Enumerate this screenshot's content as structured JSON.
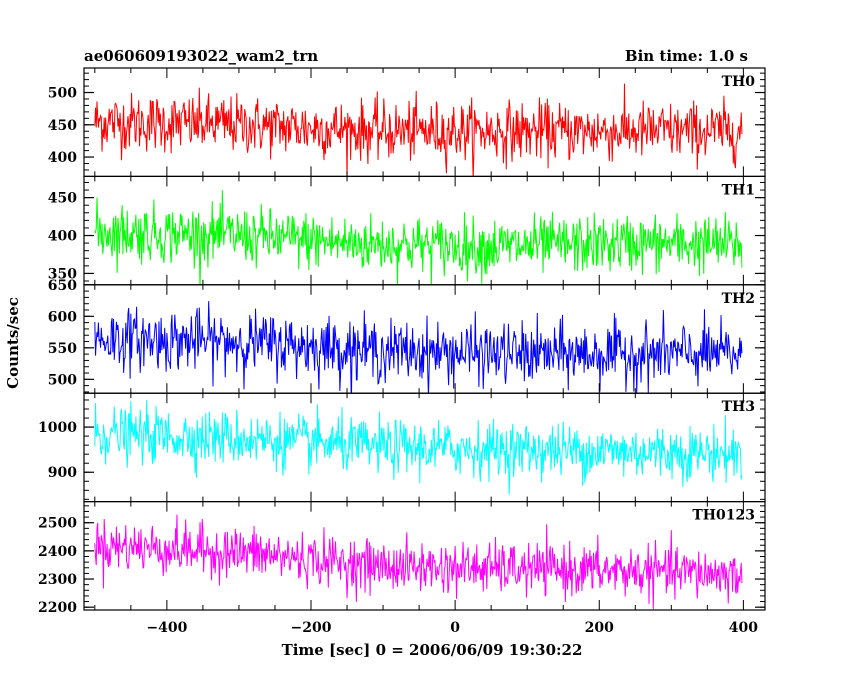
{
  "chart_data": {
    "type": "line",
    "title": "ae060609193022_wam2_trn",
    "subtitle": "Bin time: 1.0 s",
    "xlabel": "Time [sec] 0 = 2006/06/09 19:30:22",
    "ylabel": "Counts/sec",
    "xlim": [
      -515,
      430
    ],
    "x_range": [
      -500,
      398
    ],
    "x_ticks": [
      -400,
      -200,
      0,
      200,
      400
    ],
    "x_tick_labels": [
      "−400",
      "−200",
      "0",
      "200",
      "400"
    ],
    "grid": false,
    "panels": [
      {
        "name": "TH0",
        "color": "#ff0000",
        "ylim": [
          370,
          538
        ],
        "y_ticks": [
          400,
          450,
          500
        ],
        "trend": [
          [
            -500,
            455
          ],
          [
            -300,
            450
          ],
          [
            -100,
            440
          ],
          [
            100,
            440
          ],
          [
            300,
            440
          ],
          [
            398,
            440
          ]
        ],
        "noise": 30
      },
      {
        "name": "TH1",
        "color": "#00ff00",
        "ylim": [
          335,
          478
        ],
        "y_ticks": [
          350,
          400,
          450
        ],
        "trend": [
          [
            -500,
            405
          ],
          [
            -300,
            400
          ],
          [
            -150,
            390
          ],
          [
            50,
            385
          ],
          [
            250,
            390
          ],
          [
            398,
            388
          ]
        ],
        "noise": 25
      },
      {
        "name": "TH2",
        "color": "#0000ff",
        "ylim": [
          478,
          650
        ],
        "y_ticks": [
          500,
          550,
          600,
          650
        ],
        "trend": [
          [
            -500,
            565
          ],
          [
            -300,
            560
          ],
          [
            -100,
            545
          ],
          [
            100,
            540
          ],
          [
            300,
            540
          ],
          [
            398,
            540
          ]
        ],
        "noise": 32
      },
      {
        "name": "TH3",
        "color": "#00ffff",
        "ylim": [
          835,
          1075
        ],
        "y_ticks": [
          900,
          1000
        ],
        "trend": [
          [
            -500,
            985
          ],
          [
            -300,
            975
          ],
          [
            -100,
            955
          ],
          [
            100,
            950
          ],
          [
            300,
            945
          ],
          [
            398,
            940
          ]
        ],
        "noise": 40
      },
      {
        "name": "TH0123",
        "color": "#ff00ff",
        "ylim": [
          2190,
          2575
        ],
        "y_ticks": [
          2200,
          2300,
          2400,
          2500
        ],
        "trend": [
          [
            -500,
            2420
          ],
          [
            -300,
            2395
          ],
          [
            -100,
            2345
          ],
          [
            100,
            2335
          ],
          [
            300,
            2325
          ],
          [
            398,
            2315
          ]
        ],
        "noise": 60
      }
    ]
  }
}
